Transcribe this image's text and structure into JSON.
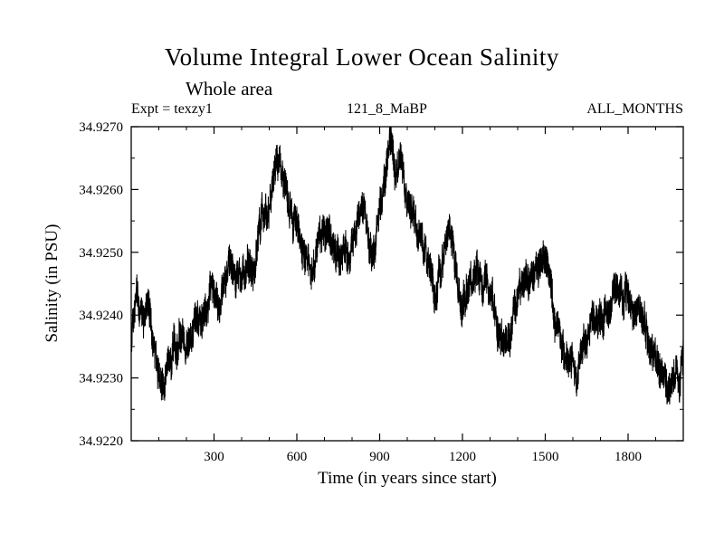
{
  "page": {
    "background": "#ffffff",
    "foreground": "#000000"
  },
  "chart_data": {
    "type": "line",
    "title": "Volume Integral Lower Ocean Salinity",
    "subtitle": "Whole area",
    "annotations": {
      "left": "Expt = texzy1",
      "center": "121_8_MaBP",
      "right": "ALL_MONTHS"
    },
    "xlabel": "Time (in years since start)",
    "ylabel": "Salinity (in PSU)",
    "xlim": [
      0,
      2000
    ],
    "ylim": [
      34.922,
      34.927
    ],
    "x_ticks": [
      300,
      600,
      900,
      1200,
      1500,
      1800
    ],
    "x_minor_step": 100,
    "y_ticks": [
      34.922,
      34.923,
      34.924,
      34.925,
      34.926,
      34.927
    ],
    "y_tick_labels": [
      "34.9220",
      "34.9230",
      "34.9240",
      "34.9250",
      "34.9260",
      "34.9270"
    ],
    "grid": false,
    "legend": "none",
    "line_color": "#000000",
    "noise_amplitude": 0.00026,
    "series": [
      {
        "name": "Volume Integral Lower Ocean Salinity",
        "x": [
          0,
          20,
          40,
          60,
          80,
          100,
          120,
          140,
          160,
          180,
          200,
          230,
          260,
          290,
          320,
          350,
          380,
          410,
          440,
          470,
          500,
          520,
          540,
          560,
          580,
          600,
          620,
          650,
          680,
          710,
          730,
          760,
          790,
          820,
          840,
          860,
          880,
          900,
          920,
          940,
          960,
          980,
          1000,
          1020,
          1050,
          1080,
          1100,
          1130,
          1160,
          1190,
          1220,
          1250,
          1280,
          1310,
          1340,
          1370,
          1400,
          1430,
          1460,
          1490,
          1510,
          1530,
          1560,
          1590,
          1610,
          1640,
          1670,
          1700,
          1730,
          1760,
          1790,
          1820,
          1850,
          1880,
          1910,
          1930,
          1950,
          1970,
          1985,
          2000
        ],
        "y": [
          34.9237,
          34.9242,
          34.9238,
          34.9241,
          34.9235,
          34.9231,
          34.9229,
          34.9231,
          34.9233,
          34.9236,
          34.9235,
          34.924,
          34.9243,
          34.9245,
          34.9243,
          34.9249,
          34.9245,
          34.9247,
          34.925,
          34.9255,
          34.9259,
          34.9264,
          34.9262,
          34.9258,
          34.9256,
          34.9254,
          34.9249,
          34.9247,
          34.925,
          34.9253,
          34.9251,
          34.9247,
          34.9248,
          34.9255,
          34.9257,
          34.9252,
          34.925,
          34.9256,
          34.9263,
          34.9266,
          34.9262,
          34.9264,
          34.9258,
          34.9256,
          34.9253,
          34.9247,
          34.9244,
          34.9249,
          34.925,
          34.9242,
          34.9243,
          34.9247,
          34.9246,
          34.9243,
          34.9237,
          34.9236,
          34.9243,
          34.9246,
          34.9245,
          34.9249,
          34.9247,
          34.924,
          34.9235,
          34.9232,
          34.923,
          34.9235,
          34.9237,
          34.9239,
          34.9242,
          34.9244,
          34.9245,
          34.9243,
          34.9241,
          34.9237,
          34.9233,
          34.923,
          34.9228,
          34.9232,
          34.9228,
          34.9235
        ]
      }
    ]
  }
}
